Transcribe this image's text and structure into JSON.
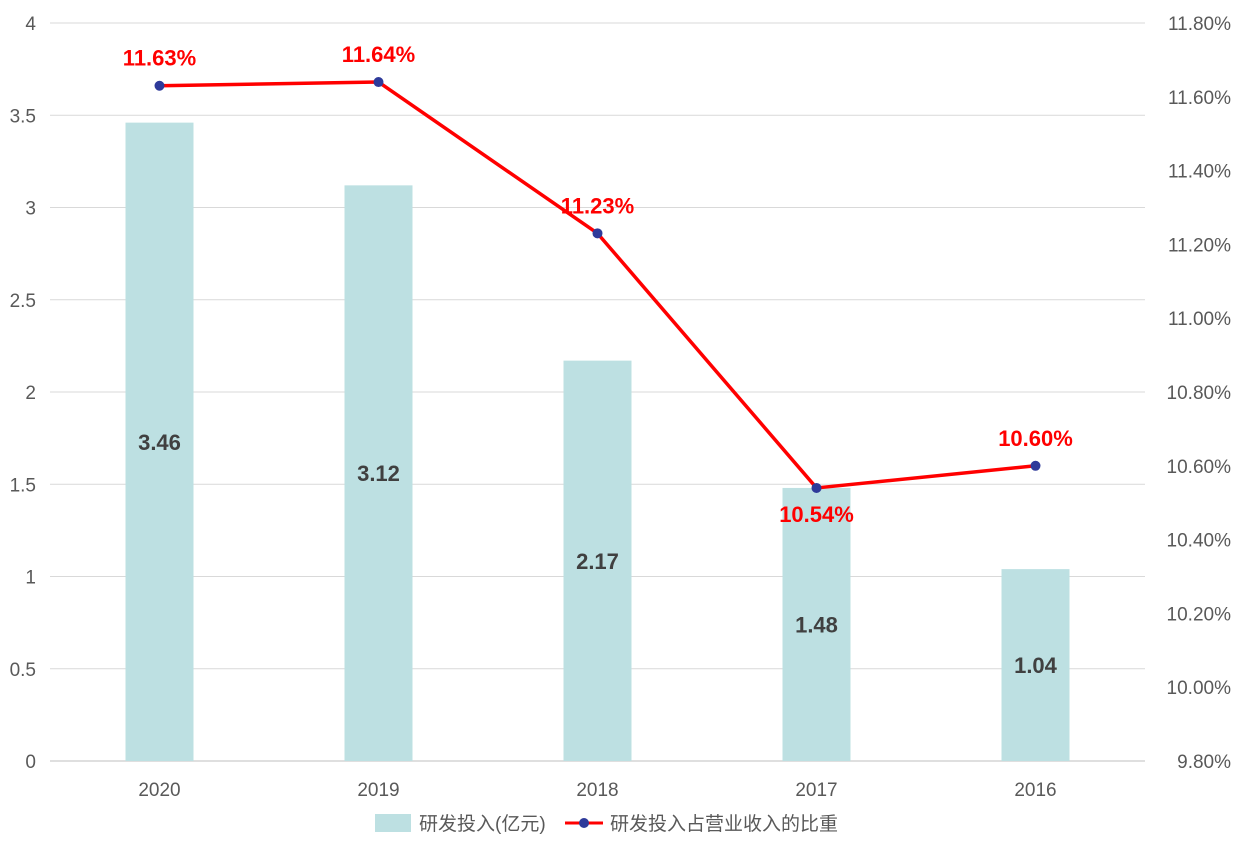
{
  "chart_data": {
    "type": "bar",
    "categories": [
      "2020",
      "2019",
      "2018",
      "2017",
      "2016"
    ],
    "series": [
      {
        "name": "研发投入(亿元)",
        "type": "bar",
        "axis": "left",
        "values": [
          3.46,
          3.12,
          2.17,
          1.48,
          1.04
        ],
        "labels": [
          "3.46",
          "3.12",
          "2.17",
          "1.48",
          "1.04"
        ],
        "color": "#bde0e2"
      },
      {
        "name": "研发投入占营业收入的比重",
        "type": "line",
        "axis": "right",
        "values": [
          11.63,
          11.64,
          11.23,
          10.54,
          10.6
        ],
        "labels": [
          "11.63%",
          "11.64%",
          "11.23%",
          "10.54%",
          "10.60%"
        ],
        "color": "#ff0000",
        "marker_color": "#2e3a9a"
      }
    ],
    "y_left": {
      "range": [
        0,
        4
      ],
      "ticks": [
        0,
        0.5,
        1,
        1.5,
        2,
        2.5,
        3,
        3.5,
        4
      ],
      "tick_labels": [
        "0",
        "0.5",
        "1",
        "1.5",
        "2",
        "2.5",
        "3",
        "3.5",
        "4"
      ]
    },
    "y_right": {
      "range": [
        9.8,
        11.8
      ],
      "ticks": [
        9.8,
        10.0,
        10.2,
        10.4,
        10.6,
        10.8,
        11.0,
        11.2,
        11.4,
        11.6,
        11.8
      ],
      "tick_labels": [
        "9.80%",
        "10.00%",
        "10.20%",
        "10.40%",
        "10.60%",
        "10.80%",
        "11.00%",
        "11.20%",
        "11.40%",
        "11.60%",
        "11.80%"
      ]
    },
    "grid": true,
    "legend_position": "bottom",
    "title": "",
    "xlabel": "",
    "ylabel": ""
  }
}
